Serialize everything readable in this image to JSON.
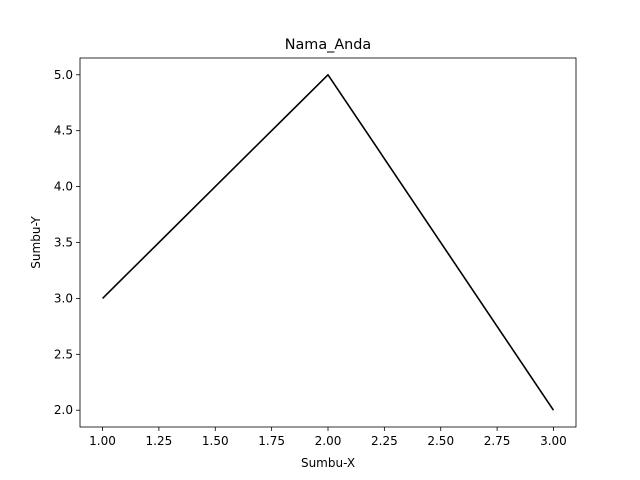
{
  "chart_data": {
    "type": "line",
    "title": "Nama_Anda",
    "xlabel": "Sumbu-X",
    "ylabel": "Sumbu-Y",
    "x": [
      1,
      2,
      3
    ],
    "series": [
      {
        "values": [
          3,
          5,
          2
        ],
        "color": "#000000"
      }
    ],
    "xlim": [
      0.9,
      3.1
    ],
    "ylim": [
      1.85,
      5.15
    ],
    "xticks": [
      "1.00",
      "1.25",
      "1.50",
      "1.75",
      "2.00",
      "2.25",
      "2.50",
      "2.75",
      "3.00"
    ],
    "yticks": [
      "2.0",
      "2.5",
      "3.0",
      "3.5",
      "4.0",
      "4.5",
      "5.0"
    ],
    "grid": false,
    "legend": "none"
  }
}
